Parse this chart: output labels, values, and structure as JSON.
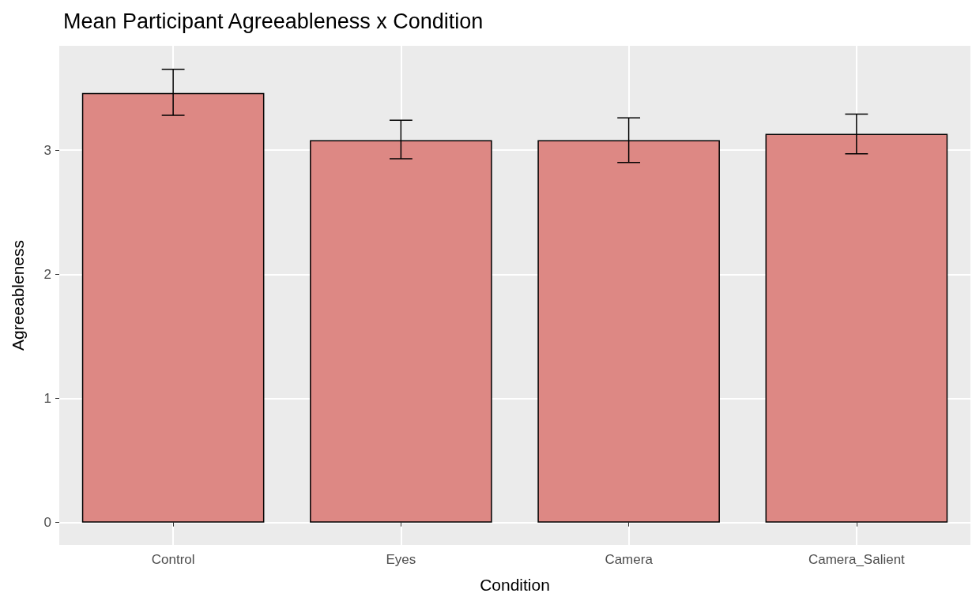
{
  "chart_data": {
    "type": "bar",
    "title": "Mean Participant Agreeableness x Condition",
    "xlabel": "Condition",
    "ylabel": "Agreeableness",
    "categories": [
      "Control",
      "Eyes",
      "Camera",
      "Camera_Salient"
    ],
    "values": [
      3.46,
      3.08,
      3.08,
      3.13
    ],
    "errors": [
      [
        3.28,
        3.65
      ],
      [
        2.93,
        3.24
      ],
      [
        2.9,
        3.26
      ],
      [
        2.97,
        3.29
      ]
    ],
    "color": "#dd8884",
    "ylim": [
      -0.18,
      3.84
    ],
    "yticks": [
      0,
      1,
      2,
      3
    ],
    "grid": true
  }
}
